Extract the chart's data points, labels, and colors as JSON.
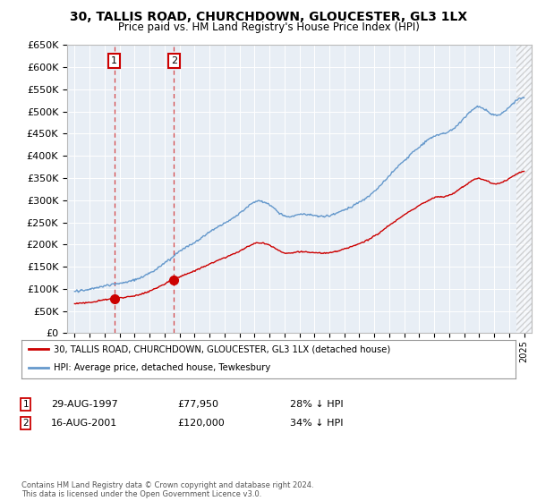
{
  "title": "30, TALLIS ROAD, CHURCHDOWN, GLOUCESTER, GL3 1LX",
  "subtitle": "Price paid vs. HM Land Registry's House Price Index (HPI)",
  "legend_line1": "30, TALLIS ROAD, CHURCHDOWN, GLOUCESTER, GL3 1LX (detached house)",
  "legend_line2": "HPI: Average price, detached house, Tewkesbury",
  "annotation1_date": "29-AUG-1997",
  "annotation1_price": "£77,950",
  "annotation1_hpi": "28% ↓ HPI",
  "annotation1_year": 1997.64,
  "annotation1_value": 77950,
  "annotation2_date": "16-AUG-2001",
  "annotation2_price": "£120,000",
  "annotation2_hpi": "34% ↓ HPI",
  "annotation2_year": 2001.62,
  "annotation2_value": 120000,
  "footer": "Contains HM Land Registry data © Crown copyright and database right 2024.\nThis data is licensed under the Open Government Licence v3.0.",
  "red_color": "#cc0000",
  "blue_color": "#6699cc",
  "hatch_start": 2024.5,
  "ylim": [
    0,
    650000
  ],
  "xlim": [
    1994.5,
    2025.5
  ]
}
